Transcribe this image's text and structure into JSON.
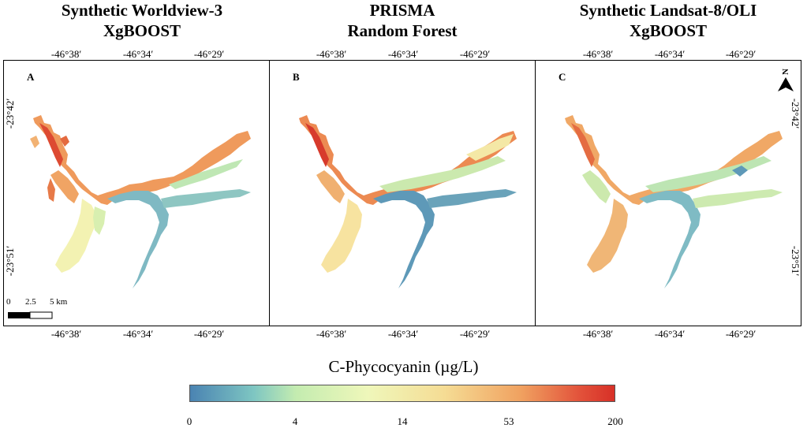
{
  "panels": [
    {
      "letter": "A",
      "title_line1": "Synthetic Worldview-3",
      "title_line2": "XgBOOST"
    },
    {
      "letter": "B",
      "title_line1": "PRISMA",
      "title_line2": "Random Forest"
    },
    {
      "letter": "C",
      "title_line1": "Synthetic Landsat-8/OLI",
      "title_line2": "XgBOOST"
    }
  ],
  "lon_ticks": [
    "-46°38′",
    "-46°34′",
    "-46°29′"
  ],
  "lat_ticks": [
    "-23°42′",
    "-23°51′"
  ],
  "north_label": "N",
  "scale_bar": {
    "zero": "0",
    "mid": "2.5",
    "end": "5 km"
  },
  "legend": {
    "title": "C-Phycocyanin (µg/L)",
    "labels": [
      "0",
      "4",
      "14",
      "53",
      "200"
    ],
    "colors": [
      "#4a83b2",
      "#7ec6c2",
      "#c4ecb0",
      "#eff7ba",
      "#f5dc94",
      "#f0a160",
      "#e2513a",
      "#d73027"
    ]
  }
}
